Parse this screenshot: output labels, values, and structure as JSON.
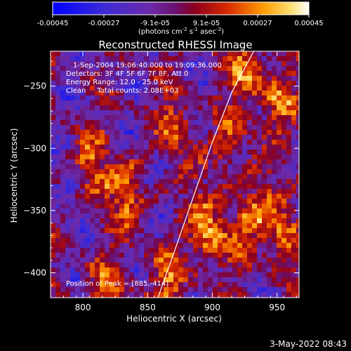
{
  "chart_data": {
    "type": "heatmap",
    "title": "Reconstructed RHESSI Image",
    "xlabel": "Heliocentric X (arcsec)",
    "ylabel": "Heliocentric Y (arcsec)",
    "xlim": [
      775,
      967
    ],
    "ylim": [
      -420,
      -222
    ],
    "x_ticks": [
      800,
      850,
      900,
      950
    ],
    "y_ticks": [
      -250,
      -300,
      -350,
      -400
    ],
    "colorbar": {
      "ticks": [
        "-0.00045",
        "-0.00027",
        "-9.1e-05",
        "9.1e-05",
        "0.00027",
        "0.00045"
      ],
      "unit_main": "(photons cm",
      "unit_exp1": "-2",
      "unit_mid": " s",
      "unit_exp2": "-1",
      "unit_asec": " asec",
      "unit_exp3": "-2",
      "unit_close": ")",
      "range": [
        -0.00045,
        0.00045
      ]
    },
    "annotations": {
      "time": "1-Sep-2004 19:06:40.000 to 19:09:36.000",
      "detectors": "Detectors: 3F 4F 5F 6F 7F 8F, Att 0",
      "energy": "Energy Range: 12.0 - 25.0 keV",
      "method": "Clean     Total counts: 2.08E+03",
      "peak": "Position of Peak = [885,-414]"
    },
    "limb_curve": {
      "points": [
        [
          858,
          -420
        ],
        [
          870,
          -385
        ],
        [
          885,
          -340
        ],
        [
          900,
          -295
        ],
        [
          915,
          -255
        ],
        [
          932,
          -222
        ]
      ]
    },
    "grid": false
  },
  "footer": {
    "datestamp": "3-May-2022 08:43"
  }
}
